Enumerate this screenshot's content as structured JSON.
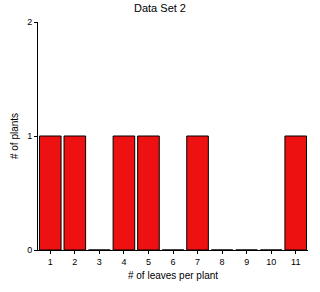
{
  "chart_data": {
    "type": "bar",
    "title": "Data Set 2",
    "x_label": "# of leaves per plant",
    "y_label": "# of plants",
    "categories": [
      "1",
      "2",
      "3",
      "4",
      "5",
      "6",
      "7",
      "8",
      "9",
      "10",
      "11"
    ],
    "values": [
      1,
      1,
      0,
      1,
      1,
      0,
      1,
      0,
      0,
      0,
      1
    ],
    "color": "#ee1111",
    "ylim": [
      0,
      2
    ],
    "yticks": [
      0,
      1,
      2
    ],
    "grid": false
  }
}
